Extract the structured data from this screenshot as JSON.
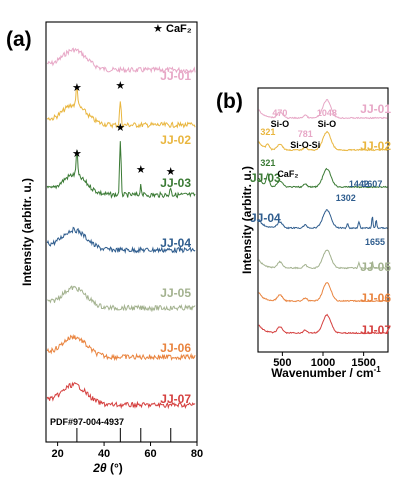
{
  "chart_data": [
    {
      "panel": "(a)",
      "type": "line",
      "xlabel_italic": "2θ",
      "xlabel_unit": " (°)",
      "ylabel": "Intensity (arbitr. u.)",
      "xlim": [
        15,
        80
      ],
      "xticks": [
        "20",
        "40",
        "60",
        "80"
      ],
      "x_tick_values": [
        20,
        40,
        60,
        80
      ],
      "legend": {
        "symbol": "★",
        "label": "CaF₂",
        "placement": "top-right"
      },
      "series": [
        {
          "name": "JJ-01",
          "color": "#e7a7c6",
          "peaks": []
        },
        {
          "name": "JJ-02",
          "color": "#e9b63f",
          "peaks": [
            28.3,
            47.0
          ]
        },
        {
          "name": "JJ-03",
          "color": "#3a7a34",
          "peaks": [
            28.3,
            47.0,
            55.8,
            68.7
          ]
        },
        {
          "name": "JJ-04",
          "color": "#2f5d8e",
          "peaks": []
        },
        {
          "name": "JJ-05",
          "color": "#a3b28f",
          "peaks": []
        },
        {
          "name": "JJ-06",
          "color": "#e9843f",
          "peaks": []
        },
        {
          "name": "JJ-07",
          "color": "#d5403f",
          "peaks": []
        }
      ],
      "reference": {
        "label": "PDF#97-004-4937",
        "lines": [
          28.3,
          47.0,
          55.8,
          68.7
        ]
      }
    },
    {
      "panel": "(b)",
      "type": "line",
      "xlabel": "Wavenumber / cm",
      "xlabel_sup": "-1",
      "ylabel": "Intensity (arbitr. u.)",
      "xlim": [
        200,
        1800
      ],
      "xticks": [
        "500",
        "1000",
        "1500"
      ],
      "x_tick_values": [
        500,
        1000,
        1500
      ],
      "series": [
        {
          "name": "JJ-01",
          "color": "#e7a7c6",
          "annotations": [
            {
              "value": "470",
              "sub": "Si-O"
            },
            {
              "value": "781",
              "sub": "Si-O-Si"
            },
            {
              "value": "1048",
              "sub": "Si-O"
            }
          ]
        },
        {
          "name": "JJ-02",
          "color": "#e9b63f",
          "annotations": [
            {
              "value": "321",
              "sub": ""
            }
          ]
        },
        {
          "name": "JJ-03",
          "color": "#3a7a34",
          "annotations": [
            {
              "value": "321",
              "sub": "CaF₂"
            }
          ]
        },
        {
          "name": "JJ-04",
          "color": "#2f5d8e",
          "annotations": [
            {
              "value": "1302",
              "sub": ""
            },
            {
              "value": "1442",
              "sub": ""
            },
            {
              "value": "1607",
              "sub": ""
            },
            {
              "value": "1655",
              "sub": ""
            }
          ]
        },
        {
          "name": "JJ-05",
          "color": "#a3b28f",
          "annotations": []
        },
        {
          "name": "JJ-06",
          "color": "#e9843f",
          "annotations": []
        },
        {
          "name": "JJ-07",
          "color": "#d5403f",
          "annotations": []
        }
      ]
    }
  ]
}
